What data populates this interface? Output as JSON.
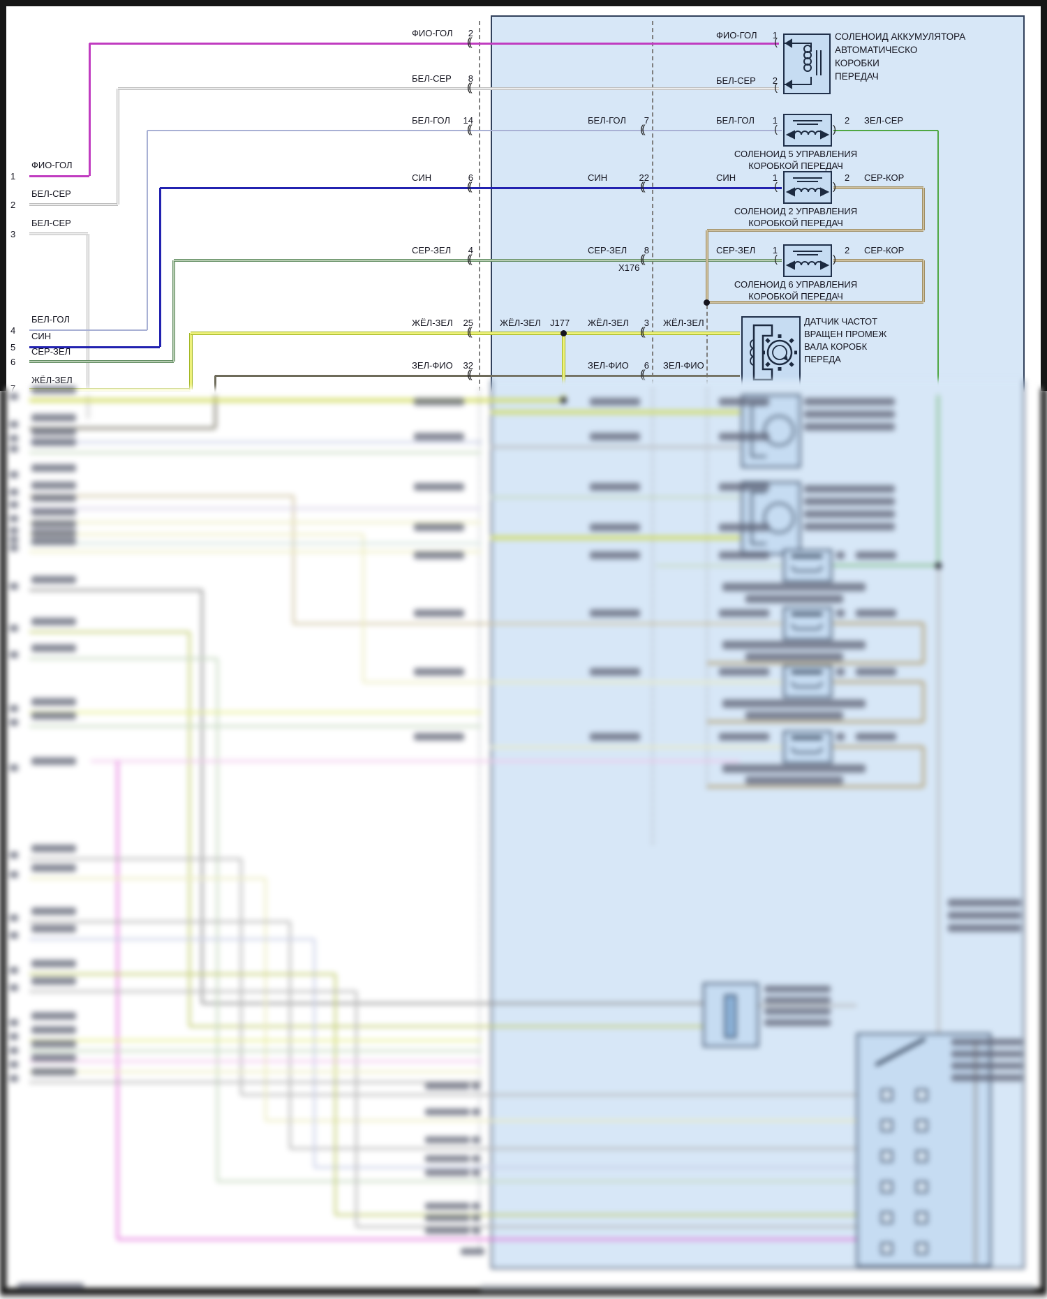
{
  "diagram": {
    "left_pins": [
      {
        "num": "1",
        "label": "ФИО-ГОЛ"
      },
      {
        "num": "2",
        "label": "БЕЛ-СЕР"
      },
      {
        "num": "3",
        "label": "БЕЛ-СЕР"
      },
      {
        "num": "4",
        "label": "БЕЛ-ГОЛ"
      },
      {
        "num": "5",
        "label": "СИН"
      },
      {
        "num": "6",
        "label": "СЕР-ЗЕЛ"
      },
      {
        "num": "7",
        "label": "ЖЁЛ-ЗЕЛ"
      }
    ],
    "rows": {
      "accumulator": {
        "left_label": "ФИО-ГОЛ",
        "left_num": "2",
        "inner_label": "ФИО-ГОЛ",
        "inner_num": "1",
        "ret_left_label": "БЕЛ-СЕР",
        "ret_left_num": "8",
        "ret_inner_label": "БЕЛ-СЕР",
        "ret_inner_num": "2",
        "component": [
          "СОЛЕНОИД АККУМУЛЯТОРА",
          "АВТОМАТИЧЕСКО",
          "КОРОБКИ",
          "ПЕРЕДАЧ"
        ]
      },
      "solenoid5": {
        "left_label": "БЕЛ-ГОЛ",
        "left_num": "14",
        "mid_label": "БЕЛ-ГОЛ",
        "mid_num": "7",
        "inner_label": "БЕЛ-ГОЛ",
        "inner_num": "1",
        "out_num": "2",
        "out_label": "ЗЕЛ-СЕР",
        "component": [
          "СОЛЕНОИД 5 УПРАВЛЕНИЯ",
          "КОРОБКОЙ ПЕРЕДАЧ"
        ]
      },
      "solenoid2": {
        "left_label": "СИН",
        "left_num": "6",
        "mid_label": "СИН",
        "mid_num": "22",
        "inner_label": "СИН",
        "inner_num": "1",
        "out_num": "2",
        "out_label": "СЕР-КОР",
        "component": [
          "СОЛЕНОИД 2 УПРАВЛЕНИЯ",
          "КОРОБКОЙ ПЕРЕДАЧ"
        ]
      },
      "solenoid6": {
        "left_label": "СЕР-ЗЕЛ",
        "left_num": "4",
        "mid_label": "СЕР-ЗЕЛ",
        "mid_num": "8",
        "inner_label": "СЕР-ЗЕЛ",
        "inner_num": "1",
        "out_num": "2",
        "out_label": "СЕР-КОР",
        "connector_label": "X176",
        "component": [
          "СОЛЕНОИД 6 УПРАВЛЕНИЯ",
          "КОРОБКОЙ ПЕРЕДАЧ"
        ]
      },
      "speed_sensor": {
        "left_label": "ЖЁЛ-ЗЕЛ",
        "left_num": "25",
        "splice_label": "ЖЁЛ-ЗЕЛ",
        "splice_id": "J177",
        "mid_label": "ЖЁЛ-ЗЕЛ",
        "mid_num": "3",
        "inner_label": "ЖЁЛ-ЗЕЛ",
        "component": [
          "ДАТЧИК ЧАСТОТ",
          "ВРАЩЕН ПРОМЕЖ",
          "ВАЛА КОРОБК",
          "ПЕРЕДА"
        ]
      },
      "speed_sensor_return": {
        "left_label": "ЗЕЛ-ФИО",
        "left_num": "32",
        "mid_label": "ЗЕЛ-ФИО",
        "mid_num": "6",
        "inner_label": "ЗЕЛ-ФИО"
      }
    },
    "symbols": {
      "connector": "((",
      "pin_open": "(",
      "pin_close": ")"
    },
    "palette": {
      "fio": {
        "c": "#c03cc0",
        "w": 3
      },
      "belser": {
        "c": "#ececec",
        "e": "#bdbdbd",
        "w": 2
      },
      "belgol": {
        "c": "#a8b0d4",
        "w": 2
      },
      "sin": {
        "c": "#2222b0",
        "w": 3
      },
      "serzel": {
        "c": "#b7cdb2",
        "e": "#628c62",
        "w": 2
      },
      "zhel": {
        "c": "#eef17c",
        "e": "#a3b723",
        "w": 3
      },
      "zelfio": {
        "c": "#6e6b5a",
        "w": 3
      },
      "zelser": {
        "c": "#4fa743",
        "w": 2
      },
      "serkor": {
        "c": "#cec09e",
        "e": "#a08f66",
        "w": 2
      },
      "bgray": {
        "c": "#b5b5b5",
        "w": 3
      },
      "bdgray": {
        "c": "#8f8f8f",
        "w": 3
      },
      "bpblue": {
        "c": "#c7cde6",
        "w": 3
      },
      "bpgreen": {
        "c": "#c5d8bf",
        "w": 3
      },
      "btan": {
        "c": "#cfc3a2",
        "w": 3
      },
      "blav": {
        "c": "#d8d3e8",
        "w": 3
      },
      "bpyellow": {
        "c": "#ececbe",
        "w": 3
      },
      "bteal": {
        "c": "#cfe0d8",
        "w": 3
      },
      "byellow": {
        "c": "#e6ee8c",
        "w": 3
      },
      "bolive": {
        "c": "#c2cc72",
        "w": 3
      },
      "bmag": {
        "c": "#e473dc",
        "w": 3
      },
      "bpmag": {
        "c": "#f0c6ec",
        "w": 3
      }
    }
  }
}
